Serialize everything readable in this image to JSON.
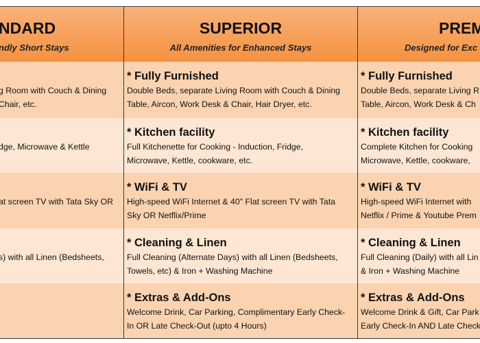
{
  "header": {
    "columns": [
      {
        "title": "NDARD",
        "subtitle": "ndly Short Stays"
      },
      {
        "title": "SUPERIOR",
        "subtitle": "All Amenities for Enhanced Stays"
      },
      {
        "title": "PREM",
        "subtitle": "Designed for Exc"
      }
    ]
  },
  "rows": [
    [
      {
        "lines": [
          "g Room with Couch & Dining",
          "Chair, etc."
        ]
      },
      {
        "heading": "* Fully Furnished",
        "lines": [
          "Double Beds, separate Living Room with Couch & Dining",
          "Table, Aircon, Work Desk & Chair, Hair Dryer, etc."
        ]
      },
      {
        "heading": "* Fully Furnished",
        "lines": [
          "Double Beds, separate Living R",
          "Table, Aircon, Work Desk & Ch"
        ]
      }
    ],
    [
      {
        "lines": [
          "dge, Microwave & Kettle"
        ]
      },
      {
        "heading": "* Kitchen facility",
        "lines": [
          "Full Kitchenette for Cooking - Induction, Fridge,",
          "Microwave, Kettle, cookware, etc."
        ]
      },
      {
        "heading": "* Kitchen facility",
        "lines": [
          "Complete Kitchen for Cooking",
          "Microwave, Kettle, cookware,"
        ]
      }
    ],
    [
      {
        "lines": [
          "at screen TV with Tata Sky OR"
        ]
      },
      {
        "heading": "* WiFi & TV",
        "lines": [
          "High-speed WiFi Internet & 40\" Flat screen TV with Tata",
          "Sky OR Netflix/Prime"
        ]
      },
      {
        "heading": "* WiFi & TV",
        "lines": [
          "High-speed WiFi Internet with",
          "Netflix / Prime & Youtube Prem"
        ]
      }
    ],
    [
      {
        "lines": [
          "s) with all Linen (Bedsheets,"
        ]
      },
      {
        "heading": "* Cleaning & Linen",
        "lines": [
          "Full Cleaning (Alternate Days) with all Linen (Bedsheets,",
          "Towels, etc) & Iron + Washing Machine"
        ]
      },
      {
        "heading": "* Cleaning & Linen",
        "lines": [
          "Full Cleaning (Daily) with all Lin",
          "& Iron + Washing Machine"
        ]
      }
    ],
    [
      {
        "lines": []
      },
      {
        "heading": "* Extras & Add-Ons",
        "lines": [
          "Welcome Drink, Car Parking, Complimentary Early Check-",
          "In OR Late Check-Out (upto 4 Hours)"
        ]
      },
      {
        "heading": "* Extras & Add-Ons",
        "lines": [
          "Welcome Drink & Gift, Car Park",
          "Early Check-In AND Late Check"
        ]
      }
    ]
  ]
}
